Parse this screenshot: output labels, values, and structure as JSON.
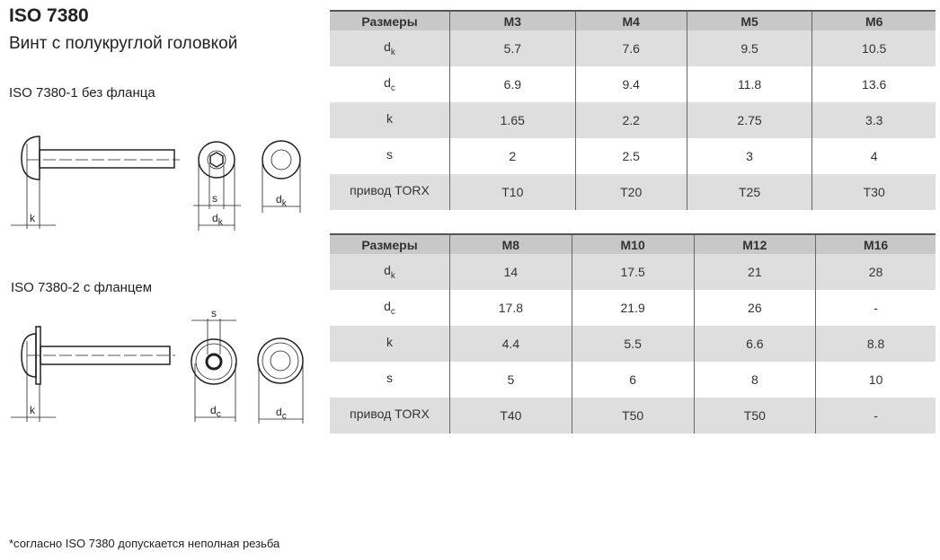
{
  "title": "ISO 7380",
  "subtitle": "Винт с полукруглой головкой",
  "variant1": "ISO 7380-1 без фланца",
  "variant2": "ISO 7380-2 с фланцем",
  "footnote": "*согласно ISO 7380 допускается неполная резьба",
  "labels": {
    "k": "k",
    "s": "s",
    "d": "d",
    "k_sub": "k",
    "c_sub": "c"
  },
  "table1": {
    "header": [
      "Размеры",
      "M3",
      "M4",
      "M5",
      "M6"
    ],
    "rows": [
      {
        "param": "d",
        "sub": "k",
        "values": [
          "5.7",
          "7.6",
          "9.5",
          "10.5"
        ]
      },
      {
        "param": "d",
        "sub": "c",
        "values": [
          "6.9",
          "9.4",
          "11.8",
          "13.6"
        ]
      },
      {
        "param": "k",
        "sub": "",
        "values": [
          "1.65",
          "2.2",
          "2.75",
          "3.3"
        ]
      },
      {
        "param": "s",
        "sub": "",
        "values": [
          "2",
          "2.5",
          "3",
          "4"
        ]
      },
      {
        "param": "привод TORX",
        "sub": "",
        "values": [
          "T10",
          "T20",
          "T25",
          "T30"
        ]
      }
    ]
  },
  "table2": {
    "header": [
      "Размеры",
      "M8",
      "M10",
      "M12",
      "M16"
    ],
    "rows": [
      {
        "param": "d",
        "sub": "k",
        "values": [
          "14",
          "17.5",
          "21",
          "28"
        ]
      },
      {
        "param": "d",
        "sub": "c",
        "values": [
          "17.8",
          "21.9",
          "26",
          "-"
        ]
      },
      {
        "param": "k",
        "sub": "",
        "values": [
          "4.4",
          "5.5",
          "6.6",
          "8.8"
        ]
      },
      {
        "param": "s",
        "sub": "",
        "values": [
          "5",
          "6",
          "8",
          "10"
        ]
      },
      {
        "param": "привод TORX",
        "sub": "",
        "values": [
          "T40",
          "T50",
          "T50",
          "-"
        ]
      }
    ]
  }
}
